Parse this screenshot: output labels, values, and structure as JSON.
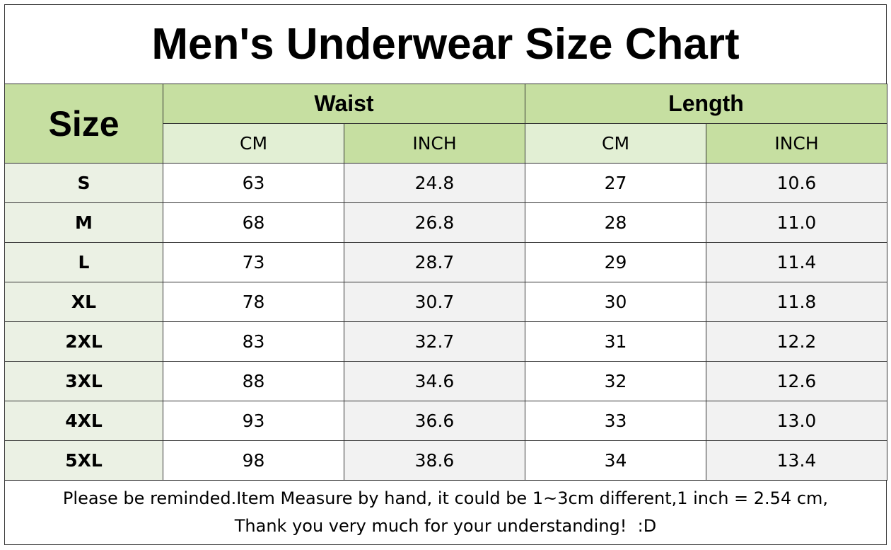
{
  "header": {
    "title": "Men's Underwear Size Chart"
  },
  "table": {
    "size_header": "Size",
    "groups": [
      "Waist",
      "Length"
    ],
    "units": [
      "CM",
      "INCH",
      "CM",
      "INCH"
    ],
    "rows": [
      [
        "S",
        "63",
        "24.8",
        "27",
        "10.6"
      ],
      [
        "M",
        "68",
        "26.8",
        "28",
        "11.0"
      ],
      [
        "L",
        "73",
        "28.7",
        "29",
        "11.4"
      ],
      [
        "XL",
        "78",
        "30.7",
        "30",
        "11.8"
      ],
      [
        "2XL",
        "83",
        "32.7",
        "31",
        "12.2"
      ],
      [
        "3XL",
        "88",
        "34.6",
        "32",
        "12.6"
      ],
      [
        "4XL",
        "93",
        "36.6",
        "33",
        "13.0"
      ],
      [
        "5XL",
        "98",
        "38.6",
        "34",
        "13.4"
      ]
    ]
  },
  "footer": {
    "lines": [
      "Please be reminded.Item Measure by hand, it could be 1~3cm different,1 inch = 2.54 cm,",
      "Thank you very much for your understanding!  :D"
    ]
  }
}
